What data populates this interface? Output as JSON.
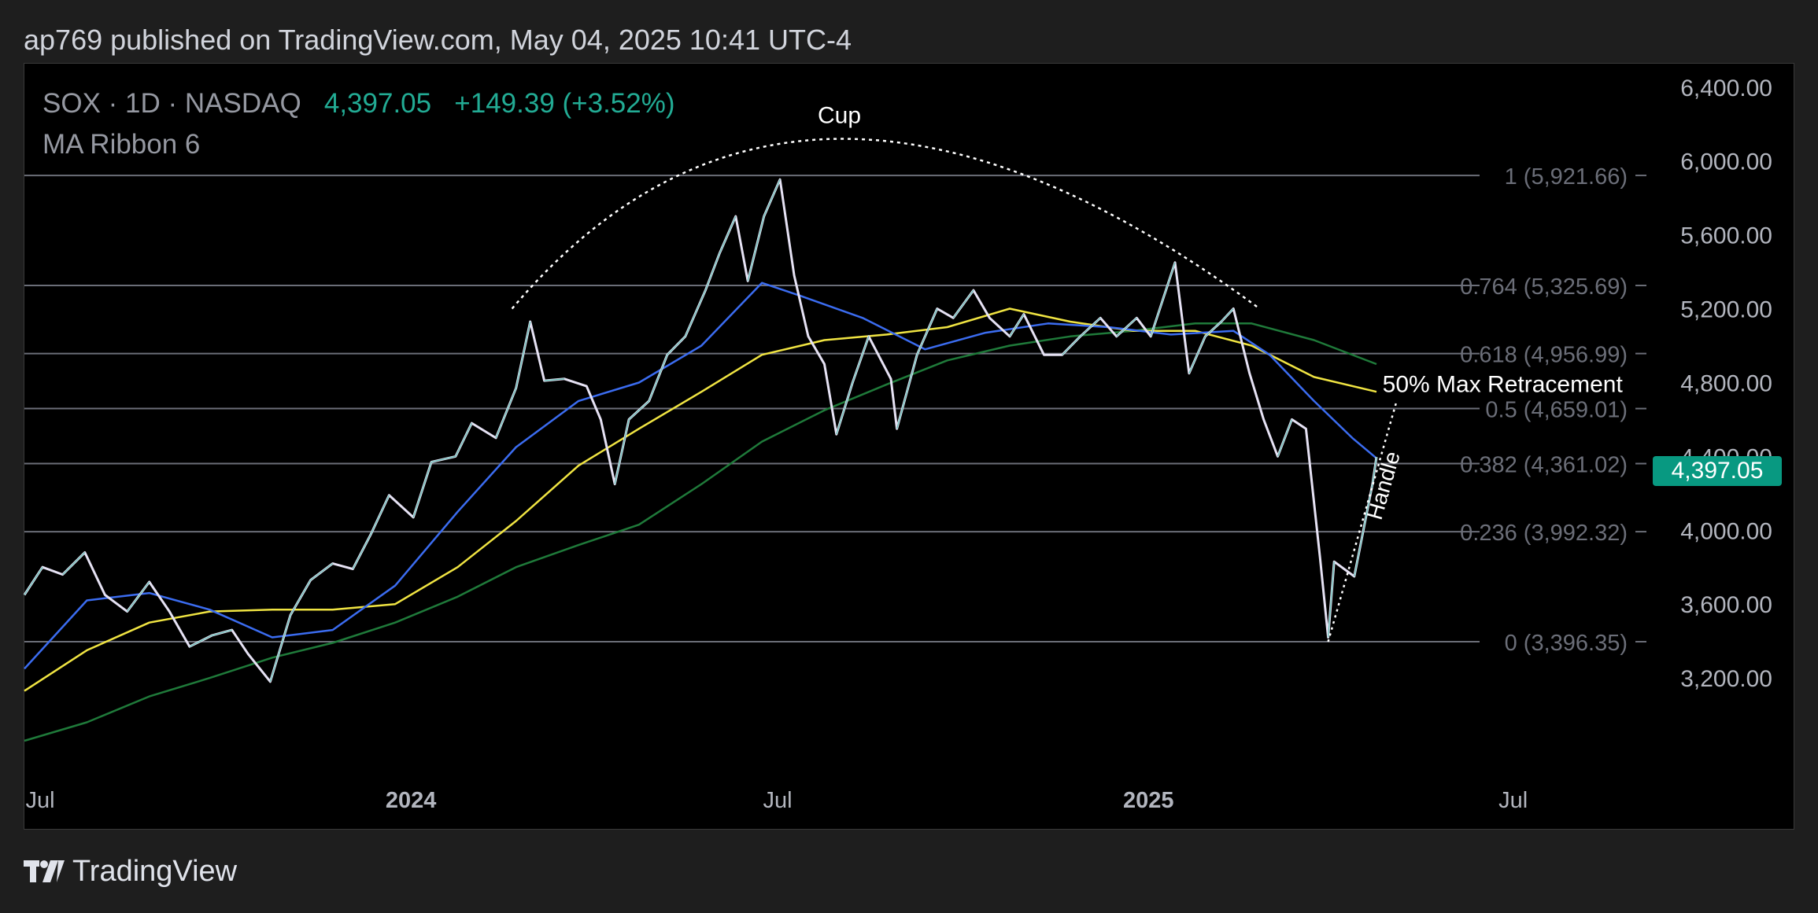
{
  "publisher_line": "ap769 published on TradingView.com, May 04, 2025 10:41 UTC-4",
  "legend": {
    "symbol": "SOX · 1D · NASDAQ",
    "price": "4,397.05",
    "change": "+149.39 (+3.52%)",
    "indicator": "MA Ribbon 6"
  },
  "last_price_tag": "4,397.05",
  "brand": {
    "name": "TradingView",
    "icon": "tradingview-logo-icon"
  },
  "colors": {
    "background": "#000000",
    "panel": "#1e1e1e",
    "price_line": "#e6e2f4",
    "up_candle": "#22ab94",
    "ma_fast": "#3b6cf0",
    "ma_mid": "#f0e442",
    "ma_slow": "#1f7a3a",
    "tag": "#089981"
  },
  "chart_data": {
    "type": "line",
    "title": "SOX · 1D · NASDAQ",
    "xlabel": "",
    "ylabel": "",
    "ylim": [
      2600,
      6480
    ],
    "x_ticks": [
      {
        "t": "2023-07-01",
        "label": "Jul",
        "bold": false
      },
      {
        "t": "2024-01-01",
        "label": "2024",
        "bold": true
      },
      {
        "t": "2024-07-01",
        "label": "Jul",
        "bold": false
      },
      {
        "t": "2025-01-01",
        "label": "2025",
        "bold": true
      },
      {
        "t": "2025-07-01",
        "label": "Jul",
        "bold": false
      }
    ],
    "x_domain": [
      "2023-07-01",
      "2025-11-25"
    ],
    "y_ticks": [
      {
        "value": 6400,
        "label": "6,400.00"
      },
      {
        "value": 6000,
        "label": "6,000.00"
      },
      {
        "value": 5600,
        "label": "5,600.00"
      },
      {
        "value": 5200,
        "label": "5,200.00"
      },
      {
        "value": 4800,
        "label": "4,800.00"
      },
      {
        "value": 4400,
        "label": "4,400.00"
      },
      {
        "value": 4000,
        "label": "4,000.00"
      },
      {
        "value": 3600,
        "label": "3,600.00"
      },
      {
        "value": 3200,
        "label": "3,200.00"
      }
    ],
    "fib_levels": [
      {
        "value": 5921.66,
        "label": "1 (5,921.66)"
      },
      {
        "value": 5325.69,
        "label": "0.764 (5,325.69)"
      },
      {
        "value": 4956.99,
        "label": "0.618 (4,956.99)"
      },
      {
        "value": 4659.01,
        "label": "0.5 (4,659.01)"
      },
      {
        "value": 4361.02,
        "label": "0.382 (4,361.02)"
      },
      {
        "value": 3992.32,
        "label": "0.236 (3,992.32)"
      },
      {
        "value": 3396.35,
        "label": "0 (3,396.35)"
      }
    ],
    "series": [
      {
        "name": "SOX",
        "color": "#e6e2f4",
        "points": [
          [
            "2023-07-01",
            3650
          ],
          [
            "2023-07-10",
            3800
          ],
          [
            "2023-07-20",
            3760
          ],
          [
            "2023-07-31",
            3880
          ],
          [
            "2023-08-10",
            3650
          ],
          [
            "2023-08-21",
            3560
          ],
          [
            "2023-09-01",
            3720
          ],
          [
            "2023-09-11",
            3560
          ],
          [
            "2023-09-21",
            3370
          ],
          [
            "2023-10-02",
            3430
          ],
          [
            "2023-10-12",
            3460
          ],
          [
            "2023-10-20",
            3330
          ],
          [
            "2023-10-31",
            3180
          ],
          [
            "2023-11-10",
            3540
          ],
          [
            "2023-11-20",
            3730
          ],
          [
            "2023-12-01",
            3820
          ],
          [
            "2023-12-11",
            3790
          ],
          [
            "2023-12-20",
            3980
          ],
          [
            "2023-12-29",
            4190
          ],
          [
            "2024-01-10",
            4070
          ],
          [
            "2024-01-19",
            4370
          ],
          [
            "2024-01-31",
            4400
          ],
          [
            "2024-02-08",
            4580
          ],
          [
            "2024-02-20",
            4500
          ],
          [
            "2024-03-01",
            4770
          ],
          [
            "2024-03-08",
            5130
          ],
          [
            "2024-03-15",
            4810
          ],
          [
            "2024-03-25",
            4820
          ],
          [
            "2024-04-05",
            4780
          ],
          [
            "2024-04-12",
            4600
          ],
          [
            "2024-04-19",
            4250
          ],
          [
            "2024-04-26",
            4600
          ],
          [
            "2024-05-06",
            4700
          ],
          [
            "2024-05-15",
            4950
          ],
          [
            "2024-05-24",
            5050
          ],
          [
            "2024-06-03",
            5300
          ],
          [
            "2024-06-10",
            5500
          ],
          [
            "2024-06-18",
            5700
          ],
          [
            "2024-06-24",
            5350
          ],
          [
            "2024-07-02",
            5700
          ],
          [
            "2024-07-10",
            5900
          ],
          [
            "2024-07-17",
            5380
          ],
          [
            "2024-07-24",
            5050
          ],
          [
            "2024-08-01",
            4900
          ],
          [
            "2024-08-07",
            4520
          ],
          [
            "2024-08-15",
            4800
          ],
          [
            "2024-08-23",
            5050
          ],
          [
            "2024-09-03",
            4820
          ],
          [
            "2024-09-06",
            4550
          ],
          [
            "2024-09-16",
            4950
          ],
          [
            "2024-09-26",
            5200
          ],
          [
            "2024-10-04",
            5150
          ],
          [
            "2024-10-14",
            5300
          ],
          [
            "2024-10-22",
            5150
          ],
          [
            "2024-11-01",
            5050
          ],
          [
            "2024-11-08",
            5170
          ],
          [
            "2024-11-18",
            4950
          ],
          [
            "2024-11-27",
            4950
          ],
          [
            "2024-12-06",
            5050
          ],
          [
            "2024-12-16",
            5150
          ],
          [
            "2024-12-24",
            5050
          ],
          [
            "2025-01-03",
            5150
          ],
          [
            "2025-01-10",
            5050
          ],
          [
            "2025-01-22",
            5450
          ],
          [
            "2025-01-29",
            4850
          ],
          [
            "2025-02-06",
            5050
          ],
          [
            "2025-02-14",
            5130
          ],
          [
            "2025-02-20",
            5200
          ],
          [
            "2025-02-28",
            4850
          ],
          [
            "2025-03-07",
            4600
          ],
          [
            "2025-03-14",
            4400
          ],
          [
            "2025-03-21",
            4600
          ],
          [
            "2025-03-28",
            4550
          ],
          [
            "2025-04-04",
            3850
          ],
          [
            "2025-04-08",
            3420
          ],
          [
            "2025-04-11",
            3830
          ],
          [
            "2025-04-21",
            3750
          ],
          [
            "2025-04-30",
            4250
          ],
          [
            "2025-05-02",
            4397.05
          ]
        ]
      },
      {
        "name": "MA fast",
        "color": "#3b6cf0",
        "points": [
          [
            "2023-07-01",
            3250
          ],
          [
            "2023-08-01",
            3620
          ],
          [
            "2023-09-01",
            3660
          ],
          [
            "2023-10-01",
            3570
          ],
          [
            "2023-11-01",
            3420
          ],
          [
            "2023-12-01",
            3460
          ],
          [
            "2024-01-01",
            3700
          ],
          [
            "2024-02-01",
            4100
          ],
          [
            "2024-03-01",
            4450
          ],
          [
            "2024-04-01",
            4700
          ],
          [
            "2024-05-01",
            4800
          ],
          [
            "2024-06-01",
            5000
          ],
          [
            "2024-07-01",
            5340
          ],
          [
            "2024-07-20",
            5270
          ],
          [
            "2024-08-20",
            5150
          ],
          [
            "2024-09-20",
            4980
          ],
          [
            "2024-10-20",
            5070
          ],
          [
            "2024-11-20",
            5120
          ],
          [
            "2024-12-20",
            5100
          ],
          [
            "2025-01-20",
            5060
          ],
          [
            "2025-02-20",
            5080
          ],
          [
            "2025-03-10",
            4950
          ],
          [
            "2025-04-01",
            4700
          ],
          [
            "2025-04-20",
            4500
          ],
          [
            "2025-05-02",
            4390
          ]
        ]
      },
      {
        "name": "MA mid",
        "color": "#f0e442",
        "points": [
          [
            "2023-07-01",
            3130
          ],
          [
            "2023-08-01",
            3350
          ],
          [
            "2023-09-01",
            3500
          ],
          [
            "2023-10-01",
            3560
          ],
          [
            "2023-11-01",
            3570
          ],
          [
            "2023-12-01",
            3570
          ],
          [
            "2024-01-01",
            3600
          ],
          [
            "2024-02-01",
            3800
          ],
          [
            "2024-03-01",
            4050
          ],
          [
            "2024-04-01",
            4350
          ],
          [
            "2024-05-01",
            4550
          ],
          [
            "2024-06-01",
            4750
          ],
          [
            "2024-07-01",
            4950
          ],
          [
            "2024-08-01",
            5030
          ],
          [
            "2024-09-01",
            5060
          ],
          [
            "2024-10-01",
            5100
          ],
          [
            "2024-11-01",
            5200
          ],
          [
            "2024-12-01",
            5130
          ],
          [
            "2025-01-01",
            5080
          ],
          [
            "2025-02-01",
            5080
          ],
          [
            "2025-03-01",
            5000
          ],
          [
            "2025-04-01",
            4830
          ],
          [
            "2025-05-02",
            4750
          ]
        ]
      },
      {
        "name": "MA slow",
        "color": "#1f7a3a",
        "points": [
          [
            "2023-07-01",
            2860
          ],
          [
            "2023-08-01",
            2960
          ],
          [
            "2023-09-01",
            3100
          ],
          [
            "2023-10-01",
            3200
          ],
          [
            "2023-11-01",
            3310
          ],
          [
            "2023-12-01",
            3390
          ],
          [
            "2024-01-01",
            3500
          ],
          [
            "2024-02-01",
            3640
          ],
          [
            "2024-03-01",
            3800
          ],
          [
            "2024-04-01",
            3920
          ],
          [
            "2024-05-01",
            4030
          ],
          [
            "2024-06-01",
            4250
          ],
          [
            "2024-07-01",
            4480
          ],
          [
            "2024-08-01",
            4650
          ],
          [
            "2024-09-01",
            4790
          ],
          [
            "2024-10-01",
            4920
          ],
          [
            "2024-11-01",
            5000
          ],
          [
            "2024-12-01",
            5050
          ],
          [
            "2025-01-01",
            5080
          ],
          [
            "2025-02-01",
            5120
          ],
          [
            "2025-03-01",
            5120
          ],
          [
            "2025-04-01",
            5030
          ],
          [
            "2025-05-02",
            4900
          ]
        ]
      }
    ],
    "annotations": [
      {
        "type": "arc",
        "label": "Cup",
        "from": [
          "2024-02-28",
          5200
        ],
        "apex": [
          "2024-08-10",
          6120
        ],
        "to": [
          "2025-03-05",
          5200
        ]
      },
      {
        "type": "label",
        "label": "50% Max Retracement",
        "at": [
          "2025-05-05",
          4800
        ]
      },
      {
        "type": "trendline",
        "label": "Handle",
        "from": [
          "2025-04-08",
          3396.35
        ],
        "to": [
          "2025-05-12",
          4700
        ]
      }
    ]
  }
}
